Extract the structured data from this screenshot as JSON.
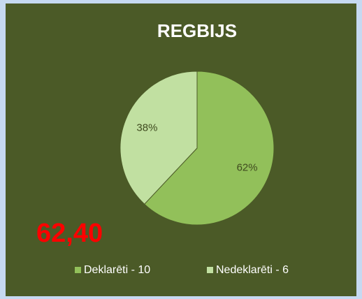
{
  "chart_data": {
    "type": "pie",
    "title": "REGBIJS",
    "categories": [
      "Deklarēti - 10",
      "Nedeklarēti - 6"
    ],
    "values": [
      62,
      38
    ],
    "value_labels": [
      "62%",
      "38%"
    ],
    "colors": [
      "#92c05a",
      "#c1e0a1"
    ],
    "annotation": "62,40",
    "legend": "bottom"
  }
}
